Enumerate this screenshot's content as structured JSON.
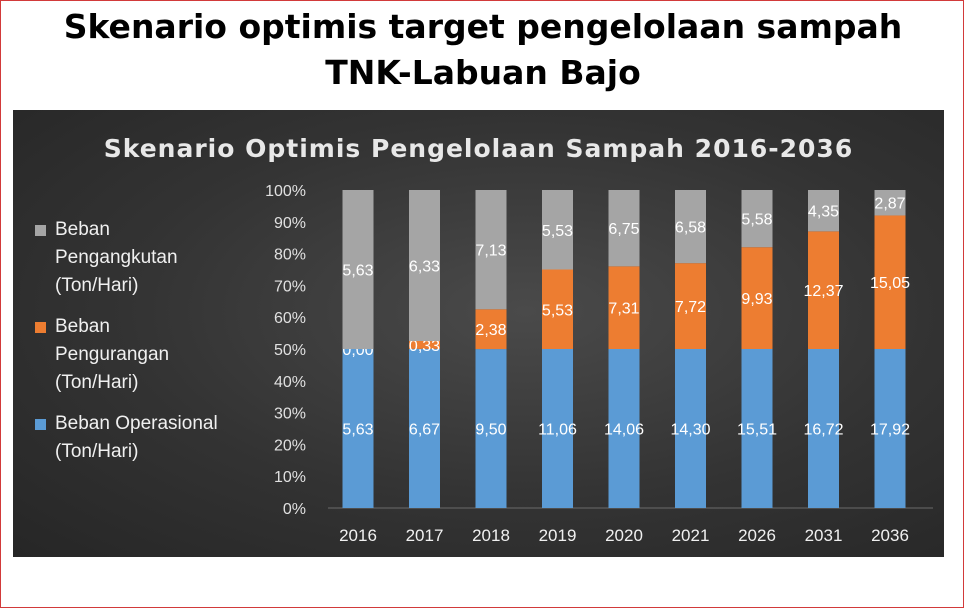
{
  "slide": {
    "title_line1": "Skenario optimis target pengelolaan sampah",
    "title_line2": "TNK-Labuan Bajo"
  },
  "colors": {
    "operasional": "#5b9bd5",
    "pengurangan": "#ed7d31",
    "pengangkutan": "#a5a5a5",
    "background": "#333333"
  },
  "chart_data": {
    "type": "bar",
    "stacked": "percent",
    "title": "Skenario Optimis Pengelolaan Sampah 2016-2036",
    "categories": [
      "2016",
      "2017",
      "2018",
      "2019",
      "2020",
      "2021",
      "2026",
      "2031",
      "2036"
    ],
    "series": [
      {
        "name": "Beban Operasional (Ton/Hari)",
        "color": "#5b9bd5",
        "values": [
          5.63,
          6.67,
          9.5,
          11.06,
          14.06,
          14.3,
          15.51,
          16.72,
          17.92
        ],
        "labels": [
          "5,63",
          "6,67",
          "9,50",
          "11,06",
          "14,06",
          "14,30",
          "15,51",
          "16,72",
          "17,92"
        ]
      },
      {
        "name": "Beban Pengurangan (Ton/Hari)",
        "color": "#ed7d31",
        "values": [
          0.0,
          0.33,
          2.38,
          5.53,
          7.31,
          7.72,
          9.93,
          12.37,
          15.05
        ],
        "labels": [
          "0,00",
          "0,33",
          "2,38",
          "5,53",
          "7,31",
          "7,72",
          "9,93",
          "12,37",
          "15,05"
        ]
      },
      {
        "name": "Beban Pengangkutan (Ton/Hari)",
        "color": "#a5a5a5",
        "values": [
          5.63,
          6.33,
          7.13,
          5.53,
          6.75,
          6.58,
          5.58,
          4.35,
          2.87
        ],
        "labels": [
          "5,63",
          "6,33",
          "7,13",
          "5,53",
          "6,75",
          "6,58",
          "5,58",
          "4,35",
          "2,87"
        ]
      }
    ],
    "y_ticks": [
      "0%",
      "10%",
      "20%",
      "30%",
      "40%",
      "50%",
      "60%",
      "70%",
      "80%",
      "90%",
      "100%"
    ],
    "ylim": [
      0,
      100
    ],
    "grid": false,
    "legend_position": "left"
  },
  "legend": [
    {
      "label": "Beban\nPengangkutan\n(Ton/Hari)",
      "color": "#a5a5a5"
    },
    {
      "label": "Beban\nPengurangan\n(Ton/Hari)",
      "color": "#ed7d31"
    },
    {
      "label": "Beban Operasional\n(Ton/Hari)",
      "color": "#5b9bd5"
    }
  ]
}
